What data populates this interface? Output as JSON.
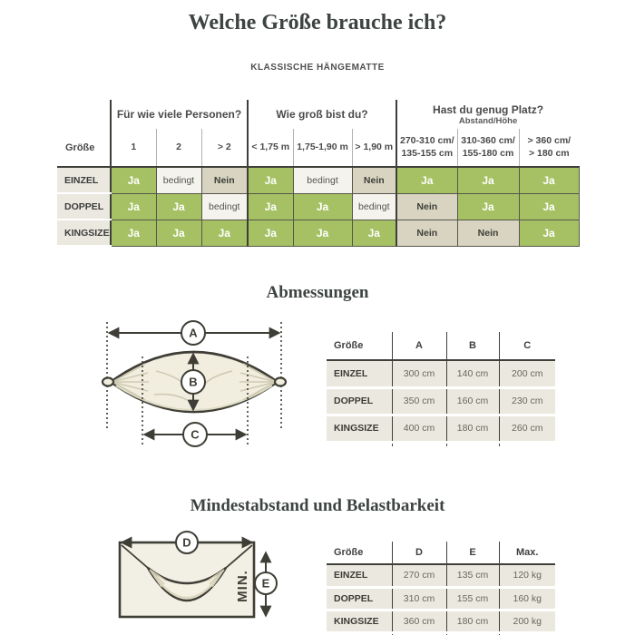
{
  "page": {
    "title": "Welche Größe brauche ich?",
    "subtitle": "KLASSISCHE HÄNGEMATTE"
  },
  "colors": {
    "green": "#a5c163",
    "nein": "#d8d4c1",
    "bedingt": "#f4f3ee",
    "rowlabel": "#eae8df",
    "line": "#3f3f3a",
    "heading": "#3d4441",
    "diagram-fill": "#f1eee0"
  },
  "size_table": {
    "row_header": "Größe",
    "groups": [
      {
        "label": "Für wie viele Personen?",
        "sublabel": "",
        "columns": [
          "1",
          "2",
          "> 2"
        ]
      },
      {
        "label": "Wie groß bist du?",
        "sublabel": "",
        "columns": [
          "< 1,75 m",
          "1,75-1,90 m",
          "> 1,90 m"
        ]
      },
      {
        "label": "Hast du genug Platz?",
        "sublabel": "Abstand/Höhe",
        "columns": [
          "270-310 cm/\n135-155 cm",
          "310-360 cm/\n155-180 cm",
          "> 360 cm/\n> 180 cm"
        ]
      }
    ],
    "rows": [
      {
        "label": "EINZEL",
        "values": [
          "Ja",
          "bedingt",
          "Nein",
          "Ja",
          "bedingt",
          "Nein",
          "Ja",
          "Ja",
          "Ja"
        ]
      },
      {
        "label": "DOPPEL",
        "values": [
          "Ja",
          "Ja",
          "bedingt",
          "Ja",
          "Ja",
          "bedingt",
          "Nein",
          "Ja",
          "Ja"
        ]
      },
      {
        "label": "KINGSIZE",
        "values": [
          "Ja",
          "Ja",
          "Ja",
          "Ja",
          "Ja",
          "Ja",
          "Nein",
          "Nein",
          "Ja"
        ]
      }
    ]
  },
  "abmessungen": {
    "heading": "Abmessungen",
    "diagram_labels": {
      "a": "A",
      "b": "B",
      "c": "C"
    },
    "table": {
      "headers": [
        "Größe",
        "A",
        "B",
        "C"
      ],
      "rows": [
        {
          "label": "EINZEL",
          "values": [
            "300 cm",
            "140 cm",
            "200 cm"
          ]
        },
        {
          "label": "DOPPEL",
          "values": [
            "350 cm",
            "160 cm",
            "230 cm"
          ]
        },
        {
          "label": "KINGSIZE",
          "values": [
            "400 cm",
            "180 cm",
            "260 cm"
          ]
        }
      ]
    }
  },
  "mindestabstand": {
    "heading": "Mindestabstand und Belastbarkeit",
    "diagram_labels": {
      "d": "D",
      "e": "E"
    },
    "min_label": "MIN.",
    "table": {
      "headers": [
        "Größe",
        "D",
        "E",
        "Max."
      ],
      "rows": [
        {
          "label": "EINZEL",
          "values": [
            "270 cm",
            "135 cm",
            "120 kg"
          ]
        },
        {
          "label": "DOPPEL",
          "values": [
            "310 cm",
            "155 cm",
            "160 kg"
          ]
        },
        {
          "label": "KINGSIZE",
          "values": [
            "360 cm",
            "180 cm",
            "200 kg"
          ]
        }
      ]
    }
  }
}
